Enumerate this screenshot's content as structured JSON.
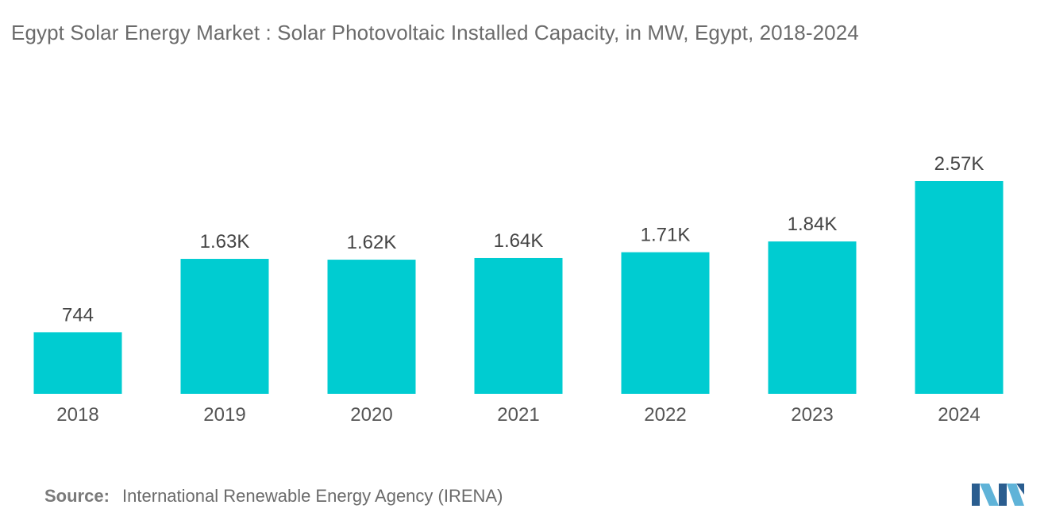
{
  "chart_data": {
    "type": "bar",
    "title": "Egypt Solar Energy Market : Solar Photovoltaic Installed Capacity, in MW, Egypt, 2018-2024",
    "categories": [
      "2018",
      "2019",
      "2020",
      "2021",
      "2022",
      "2023",
      "2024"
    ],
    "values": [
      744,
      1630,
      1620,
      1640,
      1710,
      1840,
      2570
    ],
    "value_labels": [
      "744",
      "1.63K",
      "1.62K",
      "1.64K",
      "1.71K",
      "1.84K",
      "2.57K"
    ],
    "xlabel": "",
    "ylabel": "",
    "ylim": [
      0,
      2570
    ],
    "grid": false,
    "bar_color": "#00CCD1"
  },
  "source": {
    "label": "Source:",
    "text": "International Renewable Energy Agency (IRENA)"
  },
  "colors": {
    "text": "#6b6b6b",
    "logo_dark": "#2a5d8f",
    "logo_light": "#5fb3d8"
  }
}
